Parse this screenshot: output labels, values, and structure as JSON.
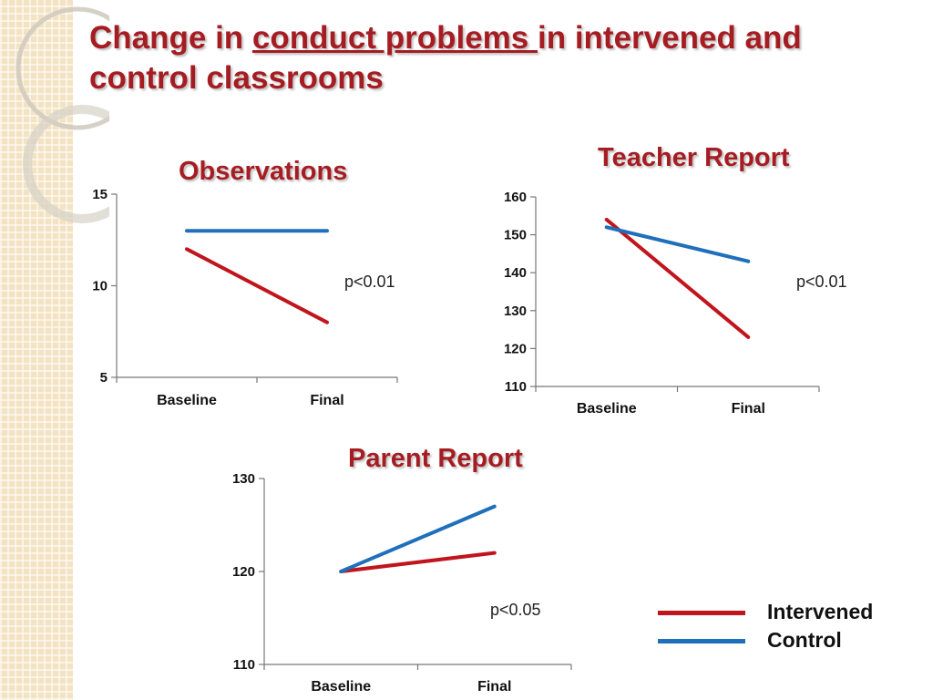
{
  "title": {
    "part1": "Change in ",
    "underlined": "conduct problems ",
    "part2": "in intervened and control classrooms"
  },
  "colors": {
    "title": "#a51d22",
    "intervened": "#c0151c",
    "control": "#1f6fba"
  },
  "legend": [
    {
      "label": "Intervened",
      "color": "#c0151c"
    },
    {
      "label": "Control",
      "color": "#1f6fba"
    }
  ],
  "chart_data": [
    {
      "id": "observations",
      "type": "line",
      "title": "Observations",
      "annotation": "p<0.01",
      "categories": [
        "Baseline",
        "Final"
      ],
      "ylim": [
        5,
        15
      ],
      "yticks": [
        5,
        10,
        15
      ],
      "series": [
        {
          "name": "Intervened",
          "color": "#c0151c",
          "values": [
            12,
            8
          ]
        },
        {
          "name": "Control",
          "color": "#1f6fba",
          "values": [
            13,
            13
          ]
        }
      ]
    },
    {
      "id": "teacher",
      "type": "line",
      "title": "Teacher Report",
      "annotation": "p<0.01",
      "categories": [
        "Baseline",
        "Final"
      ],
      "ylim": [
        110,
        160
      ],
      "yticks": [
        110,
        120,
        130,
        140,
        150,
        160
      ],
      "series": [
        {
          "name": "Intervened",
          "color": "#c0151c",
          "values": [
            154,
            123
          ]
        },
        {
          "name": "Control",
          "color": "#1f6fba",
          "values": [
            152,
            143
          ]
        }
      ]
    },
    {
      "id": "parent",
      "type": "line",
      "title": "Parent Report",
      "annotation": "p<0.05",
      "categories": [
        "Baseline",
        "Final"
      ],
      "ylim": [
        110,
        130
      ],
      "yticks": [
        110,
        120,
        130
      ],
      "series": [
        {
          "name": "Intervened",
          "color": "#c0151c",
          "values": [
            120,
            122
          ]
        },
        {
          "name": "Control",
          "color": "#1f6fba",
          "values": [
            120,
            127
          ]
        }
      ]
    }
  ]
}
